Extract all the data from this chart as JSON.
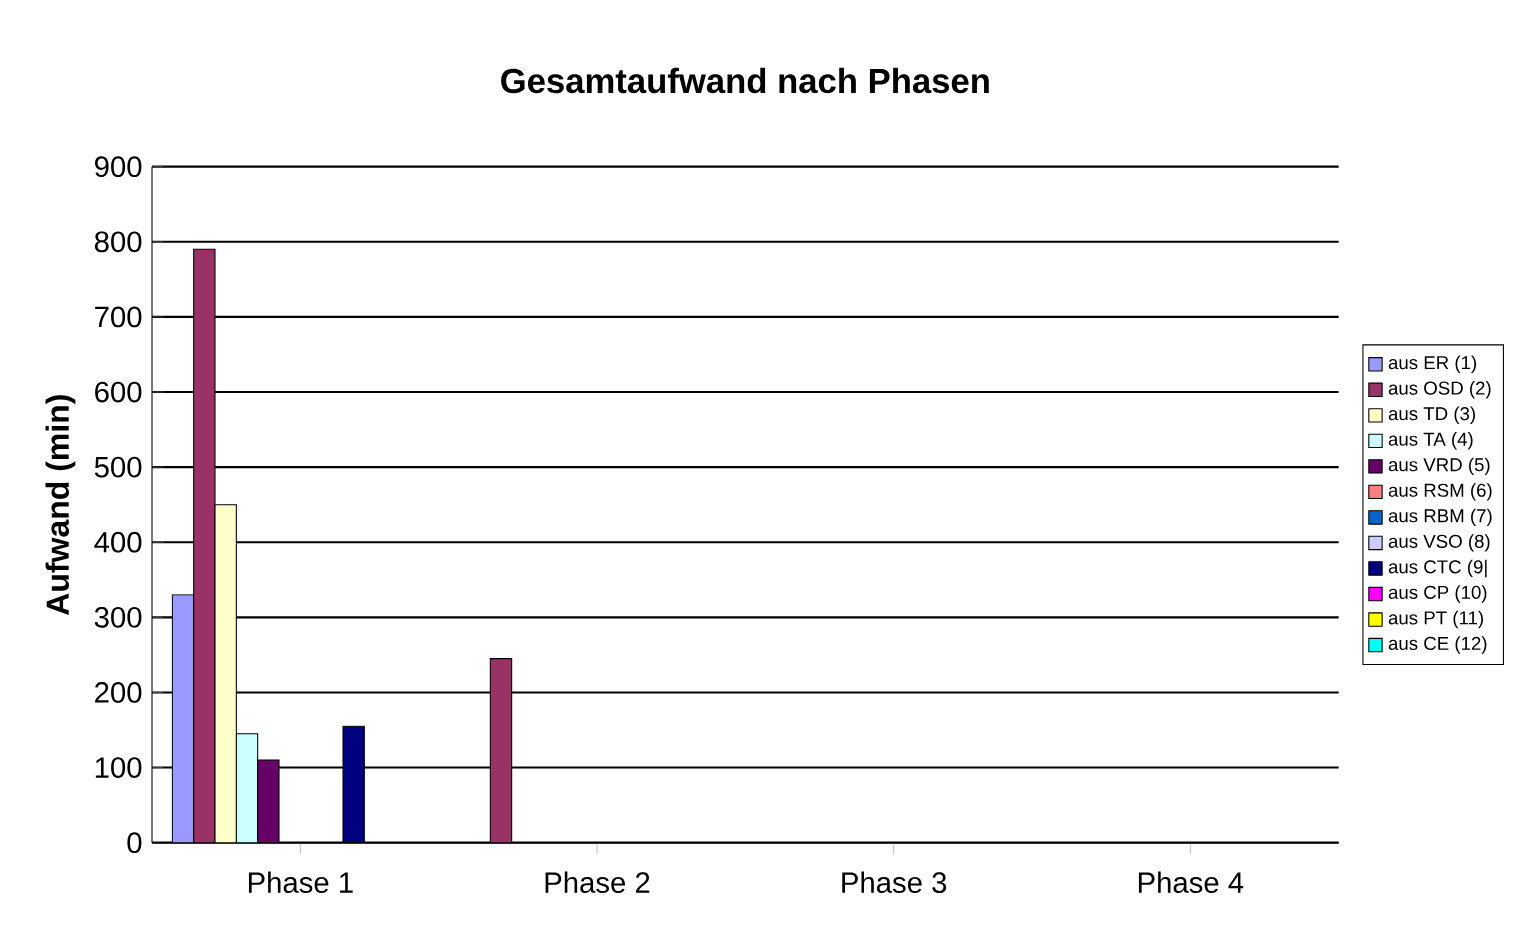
{
  "chart_data": {
    "type": "bar",
    "title": "Gesamtaufwand nach Phasen",
    "ylabel": "Aufwand (min)",
    "categories": [
      "Phase 1",
      "Phase 2",
      "Phase 3",
      "Phase 4"
    ],
    "series": [
      {
        "name": "aus ER (1)",
        "color": "#9999ff",
        "values": [
          330,
          null,
          null,
          null
        ]
      },
      {
        "name": "aus OSD (2)",
        "color": "#993366",
        "values": [
          790,
          245,
          null,
          null
        ]
      },
      {
        "name": "aus TD (3)",
        "color": "#ffffcc",
        "values": [
          450,
          null,
          null,
          null
        ]
      },
      {
        "name": "aus TA (4)",
        "color": "#ccffff",
        "values": [
          145,
          null,
          null,
          null
        ]
      },
      {
        "name": "aus VRD (5)",
        "color": "#660066",
        "values": [
          110,
          null,
          null,
          null
        ]
      },
      {
        "name": "aus RSM (6)",
        "color": "#ff8080",
        "values": [
          null,
          null,
          null,
          null
        ]
      },
      {
        "name": "aus RBM (7)",
        "color": "#0066cc",
        "values": [
          null,
          null,
          null,
          null
        ]
      },
      {
        "name": "aus VSO (8)",
        "color": "#ccccff",
        "values": [
          null,
          null,
          null,
          null
        ]
      },
      {
        "name": "aus CTC (9|",
        "color": "#000080",
        "values": [
          155,
          null,
          null,
          null
        ]
      },
      {
        "name": "aus CP (10)",
        "color": "#ff00ff",
        "values": [
          null,
          null,
          null,
          null
        ]
      },
      {
        "name": "aus PT (11)",
        "color": "#ffff00",
        "values": [
          null,
          null,
          null,
          null
        ]
      },
      {
        "name": "aus CE (12)",
        "color": "#00ffff",
        "values": [
          null,
          null,
          null,
          null
        ]
      }
    ],
    "ylim": [
      0,
      900
    ],
    "yticks": [
      0,
      100,
      200,
      300,
      400,
      500,
      600,
      700,
      800,
      900
    ],
    "grid": "y",
    "legend": "right"
  }
}
